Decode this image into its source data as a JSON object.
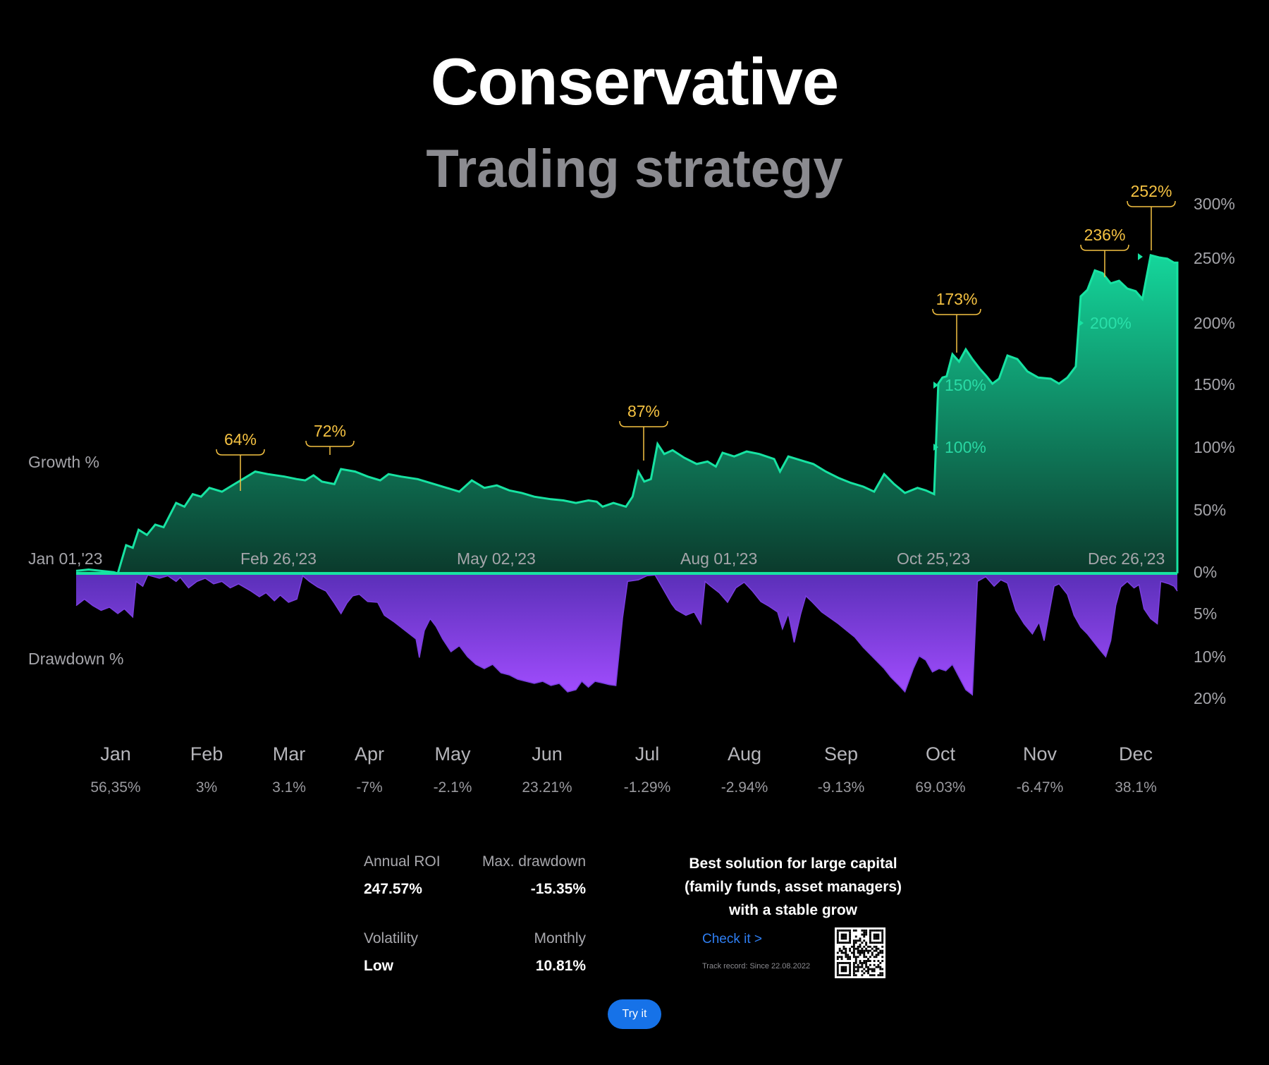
{
  "header": {
    "title": "Conservative",
    "subtitle": "Trading strategy"
  },
  "chart_data": {
    "type": "area",
    "growth_label": "Growth %",
    "drawdown_label": "Drawdown %",
    "date_labels": [
      "Jan 01,'23",
      "Feb 26,'23",
      "May 02,'23",
      "Aug 01,'23",
      "Oct 25,'23",
      "Dec 26,'23"
    ],
    "growth_axis_ticks": [
      "300%",
      "250%",
      "200%",
      "150%",
      "100%",
      "50%",
      "0%"
    ],
    "drawdown_axis_ticks": [
      "5%",
      "10%",
      "20%"
    ],
    "growth_ylim": [
      0,
      300
    ],
    "drawdown_ylim": [
      0,
      20
    ],
    "growth": [
      [
        0,
        2
      ],
      [
        0.015,
        3
      ],
      [
        0.03,
        2
      ],
      [
        0.045,
        1
      ],
      [
        0.05,
        0
      ],
      [
        0.06,
        22
      ],
      [
        0.068,
        20
      ],
      [
        0.075,
        34
      ],
      [
        0.085,
        30
      ],
      [
        0.095,
        38
      ],
      [
        0.105,
        36
      ],
      [
        0.12,
        55
      ],
      [
        0.13,
        52
      ],
      [
        0.14,
        62
      ],
      [
        0.15,
        60
      ],
      [
        0.16,
        67
      ],
      [
        0.175,
        64
      ],
      [
        0.19,
        70
      ],
      [
        0.2,
        74
      ],
      [
        0.215,
        80
      ],
      [
        0.23,
        78
      ],
      [
        0.25,
        76
      ],
      [
        0.265,
        74
      ],
      [
        0.275,
        73
      ],
      [
        0.285,
        77
      ],
      [
        0.295,
        72
      ],
      [
        0.31,
        70
      ],
      [
        0.318,
        82
      ],
      [
        0.335,
        80
      ],
      [
        0.35,
        76
      ],
      [
        0.365,
        73
      ],
      [
        0.375,
        78
      ],
      [
        0.39,
        76
      ],
      [
        0.41,
        74
      ],
      [
        0.43,
        70
      ],
      [
        0.45,
        66
      ],
      [
        0.46,
        64
      ],
      [
        0.475,
        73
      ],
      [
        0.49,
        67
      ],
      [
        0.505,
        69
      ],
      [
        0.52,
        65
      ],
      [
        0.535,
        63
      ],
      [
        0.55,
        60
      ],
      [
        0.57,
        58
      ],
      [
        0.585,
        57
      ],
      [
        0.6,
        55
      ],
      [
        0.615,
        57
      ],
      [
        0.625,
        56
      ],
      [
        0.632,
        52
      ],
      [
        0.645,
        55
      ],
      [
        0.66,
        52
      ],
      [
        0.668,
        60
      ],
      [
        0.675,
        80
      ],
      [
        0.682,
        72
      ],
      [
        0.69,
        74
      ],
      [
        0.698,
        102
      ],
      [
        0.706,
        94
      ],
      [
        0.716,
        97
      ],
      [
        0.73,
        91
      ],
      [
        0.745,
        86
      ],
      [
        0.758,
        88
      ],
      [
        0.768,
        84
      ],
      [
        0.776,
        95
      ],
      [
        0.79,
        92
      ],
      [
        0.805,
        96
      ],
      [
        0.82,
        94
      ],
      [
        0.838,
        90
      ],
      [
        0.845,
        80
      ],
      [
        0.855,
        92
      ],
      [
        0.87,
        89
      ],
      [
        0.885,
        86
      ],
      [
        0.9,
        80
      ],
      [
        0.915,
        75
      ],
      [
        0.93,
        71
      ],
      [
        0.945,
        68
      ],
      [
        0.958,
        64
      ],
      [
        0.97,
        78
      ],
      [
        0.982,
        70
      ],
      [
        0.995,
        63
      ],
      [
        1.01,
        67
      ],
      [
        1.02,
        65
      ],
      [
        1.03,
        62
      ],
      [
        1.035,
        150
      ],
      [
        1.04,
        155
      ],
      [
        1.045,
        156
      ],
      [
        1.052,
        174
      ],
      [
        1.06,
        168
      ],
      [
        1.068,
        178
      ],
      [
        1.076,
        170
      ],
      [
        1.085,
        162
      ],
      [
        1.093,
        156
      ],
      [
        1.1,
        150
      ],
      [
        1.108,
        154
      ],
      [
        1.118,
        173
      ],
      [
        1.13,
        170
      ],
      [
        1.142,
        160
      ],
      [
        1.155,
        155
      ],
      [
        1.17,
        154
      ],
      [
        1.18,
        150
      ],
      [
        1.19,
        155
      ],
      [
        1.2,
        164
      ],
      [
        1.206,
        220
      ],
      [
        1.214,
        225
      ],
      [
        1.223,
        240
      ],
      [
        1.232,
        238
      ],
      [
        1.242,
        230
      ],
      [
        1.252,
        232
      ],
      [
        1.262,
        226
      ],
      [
        1.272,
        224
      ],
      [
        1.28,
        218
      ],
      [
        1.29,
        252
      ],
      [
        1.3,
        250
      ],
      [
        1.31,
        249
      ],
      [
        1.318,
        246
      ],
      [
        1.322,
        246
      ]
    ],
    "drawdown": [
      [
        0,
        4
      ],
      [
        0.01,
        3.2
      ],
      [
        0.02,
        4
      ],
      [
        0.03,
        4.6
      ],
      [
        0.04,
        4.2
      ],
      [
        0.05,
        5
      ],
      [
        0.058,
        4.4
      ],
      [
        0.068,
        5.4
      ],
      [
        0.072,
        1
      ],
      [
        0.08,
        1.6
      ],
      [
        0.086,
        0.2
      ],
      [
        0.1,
        0.6
      ],
      [
        0.11,
        0.3
      ],
      [
        0.12,
        1
      ],
      [
        0.125,
        0.5
      ],
      [
        0.135,
        1.8
      ],
      [
        0.145,
        1
      ],
      [
        0.155,
        0.6
      ],
      [
        0.165,
        1.3
      ],
      [
        0.175,
        1
      ],
      [
        0.185,
        1.8
      ],
      [
        0.195,
        1.3
      ],
      [
        0.21,
        2.2
      ],
      [
        0.22,
        2.9
      ],
      [
        0.228,
        2.4
      ],
      [
        0.238,
        3.4
      ],
      [
        0.245,
        2.7
      ],
      [
        0.255,
        3.6
      ],
      [
        0.265,
        3.2
      ],
      [
        0.272,
        0.3
      ],
      [
        0.28,
        1
      ],
      [
        0.29,
        1.7
      ],
      [
        0.3,
        2.2
      ],
      [
        0.31,
        3.7
      ],
      [
        0.318,
        5
      ],
      [
        0.325,
        3.7
      ],
      [
        0.332,
        2.8
      ],
      [
        0.34,
        2.6
      ],
      [
        0.35,
        3.5
      ],
      [
        0.362,
        3.6
      ],
      [
        0.37,
        5.2
      ],
      [
        0.382,
        6
      ],
      [
        0.395,
        7
      ],
      [
        0.408,
        8
      ],
      [
        0.412,
        10.4
      ],
      [
        0.418,
        7
      ],
      [
        0.425,
        5.6
      ],
      [
        0.432,
        6.5
      ],
      [
        0.44,
        8
      ],
      [
        0.45,
        9.5
      ],
      [
        0.46,
        8.8
      ],
      [
        0.47,
        10.2
      ],
      [
        0.48,
        12
      ],
      [
        0.49,
        13
      ],
      [
        0.5,
        12
      ],
      [
        0.51,
        14
      ],
      [
        0.52,
        14.5
      ],
      [
        0.53,
        15.5
      ],
      [
        0.54,
        16
      ],
      [
        0.55,
        16.5
      ],
      [
        0.56,
        16
      ],
      [
        0.57,
        17
      ],
      [
        0.58,
        16.5
      ],
      [
        0.59,
        18.5
      ],
      [
        0.6,
        18
      ],
      [
        0.607,
        16
      ],
      [
        0.615,
        17.4
      ],
      [
        0.623,
        16
      ],
      [
        0.632,
        16.4
      ],
      [
        0.64,
        16.8
      ],
      [
        0.648,
        17
      ],
      [
        0.656,
        5.5
      ],
      [
        0.662,
        1
      ],
      [
        0.675,
        0.8
      ],
      [
        0.685,
        0.3
      ],
      [
        0.695,
        0.2
      ],
      [
        0.705,
        2
      ],
      [
        0.715,
        3.8
      ],
      [
        0.72,
        4.5
      ],
      [
        0.732,
        5.2
      ],
      [
        0.742,
        4.8
      ],
      [
        0.75,
        6.2
      ],
      [
        0.755,
        1
      ],
      [
        0.762,
        1.6
      ],
      [
        0.772,
        2.4
      ],
      [
        0.782,
        3.6
      ],
      [
        0.792,
        1.8
      ],
      [
        0.802,
        1.1
      ],
      [
        0.812,
        2.2
      ],
      [
        0.822,
        3.5
      ],
      [
        0.832,
        4.1
      ],
      [
        0.842,
        4.8
      ],
      [
        0.848,
        6.8
      ],
      [
        0.855,
        5
      ],
      [
        0.862,
        8.4
      ],
      [
        0.87,
        5
      ],
      [
        0.876,
        2.8
      ],
      [
        0.884,
        3.6
      ],
      [
        0.895,
        4.8
      ],
      [
        0.905,
        5.5
      ],
      [
        0.915,
        6.2
      ],
      [
        0.925,
        7
      ],
      [
        0.935,
        7.8
      ],
      [
        0.945,
        9
      ],
      [
        0.955,
        10
      ],
      [
        0.962,
        11.4
      ],
      [
        0.97,
        13
      ],
      [
        0.978,
        15
      ],
      [
        0.988,
        17
      ],
      [
        0.995,
        18.5
      ],
      [
        1.005,
        13
      ],
      [
        1.012,
        10
      ],
      [
        1.02,
        11
      ],
      [
        1.028,
        13.8
      ],
      [
        1.036,
        13
      ],
      [
        1.044,
        13.5
      ],
      [
        1.052,
        12
      ],
      [
        1.06,
        15
      ],
      [
        1.068,
        18
      ],
      [
        1.076,
        19.2
      ],
      [
        1.082,
        1
      ],
      [
        1.092,
        0.4
      ],
      [
        1.102,
        1.6
      ],
      [
        1.11,
        0.8
      ],
      [
        1.118,
        1.2
      ],
      [
        1.128,
        4.6
      ],
      [
        1.138,
        6.2
      ],
      [
        1.148,
        7.4
      ],
      [
        1.156,
        6
      ],
      [
        1.162,
        8.2
      ],
      [
        1.168,
        5
      ],
      [
        1.174,
        1.6
      ],
      [
        1.18,
        1.3
      ],
      [
        1.19,
        2.6
      ],
      [
        1.198,
        5.2
      ],
      [
        1.206,
        6.6
      ],
      [
        1.214,
        7.4
      ],
      [
        1.222,
        8.4
      ],
      [
        1.23,
        9.4
      ],
      [
        1.236,
        10.2
      ],
      [
        1.242,
        8.2
      ],
      [
        1.248,
        4
      ],
      [
        1.254,
        1.7
      ],
      [
        1.262,
        1
      ],
      [
        1.27,
        1.8
      ],
      [
        1.276,
        1.4
      ],
      [
        1.282,
        4.4
      ],
      [
        1.29,
        5.6
      ],
      [
        1.298,
        6.2
      ],
      [
        1.302,
        1
      ],
      [
        1.312,
        1.3
      ],
      [
        1.318,
        1.6
      ],
      [
        1.322,
        2.2
      ]
    ],
    "peak_labels": [
      "64%",
      "72%",
      "87%",
      "173%",
      "236%",
      "252%"
    ],
    "inline_labels": [
      "100%",
      "150%",
      "200%"
    ],
    "months": [
      "Jan",
      "Feb",
      "Mar",
      "Apr",
      "May",
      "Jun",
      "Jul",
      "Aug",
      "Sep",
      "Oct",
      "Nov",
      "Dec"
    ],
    "monthly_returns": [
      "56,35%",
      "3%",
      "3.1%",
      "-7%",
      "-2.1%",
      "23.21%",
      "-1.29%",
      "-2.94%",
      "-9.13%",
      "69.03%",
      "-6.47%",
      "38.1%"
    ],
    "colors": {
      "growth": "#17e3a2",
      "drawdown": "#9b4bff",
      "peak": "#f5c242",
      "axis": "#a5a5aa"
    }
  },
  "stats": {
    "annual_roi_label": "Annual ROI",
    "annual_roi_value": "247.57%",
    "max_drawdown_label": "Max. drawdown",
    "max_drawdown_value": "-15.35%",
    "volatility_label": "Volatility",
    "volatility_value": "Low",
    "monthly_label": "Monthly",
    "monthly_value": "10.81%"
  },
  "promo": {
    "line1": "Best solution for large capital",
    "line2": "(family funds, asset managers)",
    "line3": "with a stable grow",
    "check_link": "Check it >",
    "track_record": "Track record: Since 22.08.2022",
    "try_button": "Try it"
  }
}
